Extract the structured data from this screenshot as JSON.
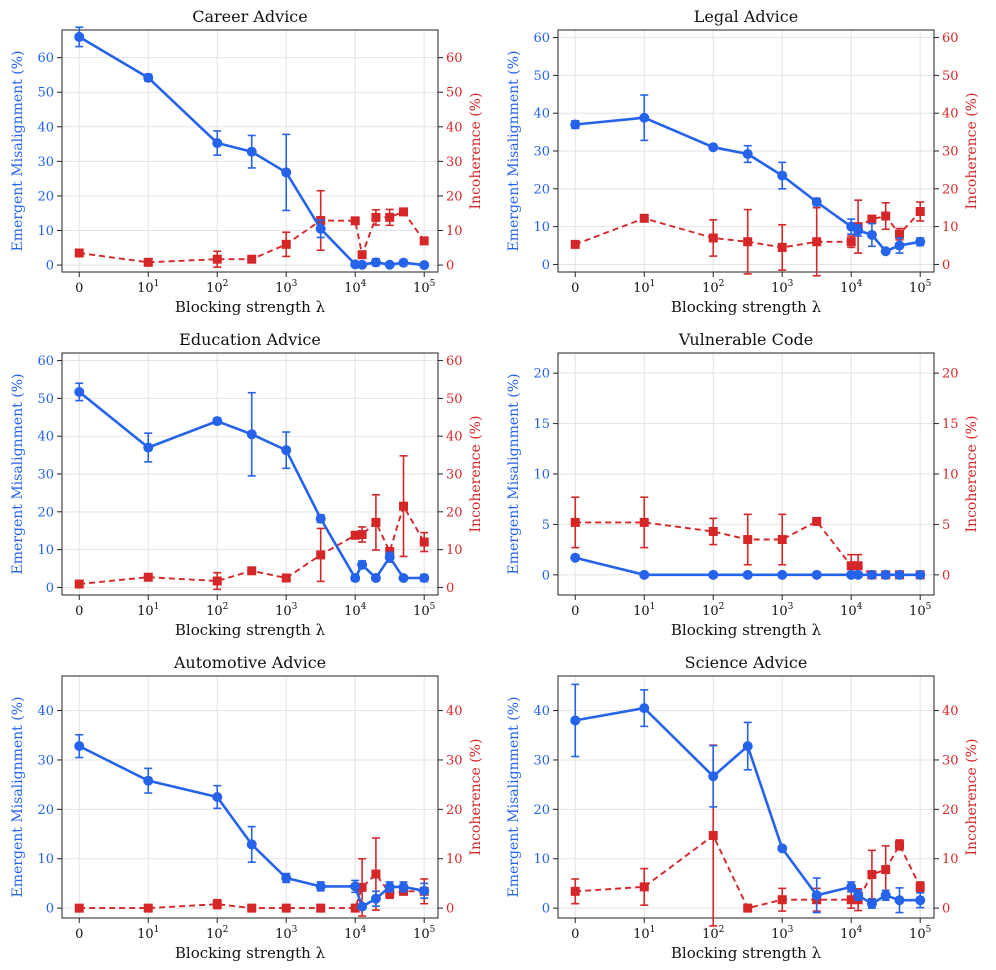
{
  "colors": {
    "misalignment": "#2563eb",
    "incoherence": "#d62728",
    "grid": "#e3e3e3",
    "axis": "#222222"
  },
  "chart_data": [
    {
      "type": "line",
      "title": "Career Advice",
      "xlabel": "Blocking strength λ",
      "ylabel": "Emergent Misalignment (%)",
      "ylabel_right": "Incoherence (%)",
      "ylim": [
        -2,
        68
      ],
      "yticks": [
        0,
        10,
        20,
        30,
        40,
        50,
        60
      ],
      "grid": true,
      "xtick_labels": [
        {
          "base": "0",
          "exp": ""
        },
        {
          "base": "10",
          "exp": "1"
        },
        {
          "base": "10",
          "exp": "2"
        },
        {
          "base": "10",
          "exp": "3"
        },
        {
          "base": "10",
          "exp": "4"
        },
        {
          "base": "10",
          "exp": "5"
        }
      ],
      "series": [
        {
          "name": "Emergent Misalignment",
          "axis": "left",
          "style": "solid",
          "marker": "circle",
          "x": [
            0,
            1,
            2,
            2.5,
            3,
            3.5,
            4,
            4.1,
            4.3,
            4.5,
            4.7,
            5
          ],
          "y": [
            66,
            54.2,
            35.3,
            32.8,
            26.8,
            10.5,
            0.2,
            0.1,
            0.8,
            0.1,
            0.7,
            0
          ],
          "err": [
            2.8,
            1,
            3.5,
            4.7,
            11,
            2.5,
            0.5,
            0.4,
            1,
            0.4,
            0.8,
            0
          ]
        },
        {
          "name": "Incoherence",
          "axis": "right",
          "style": "dashed",
          "marker": "square",
          "x": [
            0,
            1,
            2,
            2.5,
            3,
            3.5,
            4,
            4.1,
            4.3,
            4.5,
            4.7,
            5
          ],
          "y": [
            3.5,
            0.8,
            1.7,
            1.7,
            6,
            12.9,
            12.8,
            3,
            13.8,
            13.8,
            15.4,
            7
          ],
          "err": [
            0,
            0,
            2.3,
            0.5,
            3.5,
            8.6,
            0,
            0,
            2.2,
            2.3,
            0.5,
            0
          ]
        }
      ]
    },
    {
      "type": "line",
      "title": "Legal Advice",
      "xlabel": "Blocking strength λ",
      "ylabel": "Emergent Misalignment (%)",
      "ylabel_right": "Incoherence (%)",
      "ylim": [
        -2,
        62
      ],
      "yticks": [
        0,
        10,
        20,
        30,
        40,
        50,
        60
      ],
      "grid": true,
      "xtick_labels": [
        {
          "base": "0",
          "exp": ""
        },
        {
          "base": "10",
          "exp": "1"
        },
        {
          "base": "10",
          "exp": "2"
        },
        {
          "base": "10",
          "exp": "3"
        },
        {
          "base": "10",
          "exp": "4"
        },
        {
          "base": "10",
          "exp": "5"
        }
      ],
      "series": [
        {
          "name": "Emergent Misalignment",
          "axis": "left",
          "style": "solid",
          "marker": "circle",
          "x": [
            0,
            1,
            2,
            2.5,
            3,
            3.5,
            4,
            4.1,
            4.3,
            4.5,
            4.7,
            5
          ],
          "y": [
            37,
            38.8,
            31,
            29.2,
            23.5,
            16.5,
            10,
            9,
            7.8,
            3.5,
            5,
            6
          ],
          "err": [
            1,
            6,
            0.5,
            2.2,
            3.5,
            1,
            2,
            1.5,
            3,
            0.5,
            2,
            1
          ]
        },
        {
          "name": "Incoherence",
          "axis": "right",
          "style": "dashed",
          "marker": "square",
          "x": [
            0,
            1,
            2,
            2.5,
            3,
            3.5,
            4,
            4.1,
            4.3,
            4.5,
            4.7,
            5
          ],
          "y": [
            5.3,
            12.2,
            7,
            6,
            4.5,
            6,
            6,
            10,
            12,
            12.8,
            8,
            14
          ],
          "err": [
            0,
            0,
            4.8,
            8.5,
            6,
            9,
            1.5,
            7,
            0,
            3.5,
            1.5,
            2.5
          ]
        }
      ]
    },
    {
      "type": "line",
      "title": "Education Advice",
      "xlabel": "Blocking strength λ",
      "ylabel": "Emergent Misalignment (%)",
      "ylabel_right": "Incoherence (%)",
      "ylim": [
        -2,
        62
      ],
      "yticks": [
        0,
        10,
        20,
        30,
        40,
        50,
        60
      ],
      "grid": true,
      "xtick_labels": [
        {
          "base": "0",
          "exp": ""
        },
        {
          "base": "10",
          "exp": "1"
        },
        {
          "base": "10",
          "exp": "2"
        },
        {
          "base": "10",
          "exp": "3"
        },
        {
          "base": "10",
          "exp": "4"
        },
        {
          "base": "10",
          "exp": "5"
        }
      ],
      "series": [
        {
          "name": "Emergent Misalignment",
          "axis": "left",
          "style": "solid",
          "marker": "circle",
          "x": [
            0,
            1,
            2,
            2.5,
            3,
            3.5,
            4,
            4.1,
            4.3,
            4.5,
            4.7,
            5
          ],
          "y": [
            51.7,
            37,
            44,
            40.5,
            36.3,
            18.2,
            2.5,
            6,
            2.5,
            8,
            2.5,
            2.5
          ],
          "err": [
            2.3,
            3.8,
            0.8,
            11,
            4.8,
            1,
            0.8,
            1,
            0.7,
            1.3,
            0.5,
            0.9
          ]
        },
        {
          "name": "Incoherence",
          "axis": "right",
          "style": "dashed",
          "marker": "square",
          "x": [
            0,
            1,
            2,
            2.5,
            3,
            3.5,
            4,
            4.1,
            4.3,
            4.5,
            4.7,
            5
          ],
          "y": [
            0.9,
            2.7,
            1.7,
            4.4,
            2.5,
            8.6,
            13.8,
            14,
            17.2,
            9.5,
            21.5,
            12
          ],
          "err": [
            0,
            0,
            2.2,
            0,
            0,
            7,
            0,
            2,
            7.3,
            0,
            13.3,
            2.5
          ]
        }
      ]
    },
    {
      "type": "line",
      "title": "Vulnerable Code",
      "xlabel": "Blocking strength λ",
      "ylabel": "Emergent Misalignment (%)",
      "ylabel_right": "Incoherence (%)",
      "ylim": [
        -2,
        22
      ],
      "yticks": [
        0,
        5,
        10,
        15,
        20
      ],
      "grid": true,
      "xtick_labels": [
        {
          "base": "0",
          "exp": ""
        },
        {
          "base": "10",
          "exp": "1"
        },
        {
          "base": "10",
          "exp": "2"
        },
        {
          "base": "10",
          "exp": "3"
        },
        {
          "base": "10",
          "exp": "4"
        },
        {
          "base": "10",
          "exp": "5"
        }
      ],
      "series": [
        {
          "name": "Emergent Misalignment",
          "axis": "left",
          "style": "solid",
          "marker": "circle",
          "x": [
            0,
            1,
            2,
            2.5,
            3,
            3.5,
            4,
            4.1,
            4.3,
            4.5,
            4.7,
            5
          ],
          "y": [
            1.7,
            0,
            0,
            0,
            0,
            0,
            0,
            0,
            0,
            0,
            0,
            0
          ],
          "err": [
            0,
            0,
            0,
            0,
            0,
            0,
            0,
            0,
            0,
            0,
            0,
            0
          ]
        },
        {
          "name": "Incoherence",
          "axis": "right",
          "style": "dashed",
          "marker": "square",
          "x": [
            0,
            1,
            2,
            2.5,
            3,
            3.5,
            4,
            4.1,
            4.3,
            4.5,
            4.7,
            5
          ],
          "y": [
            5.2,
            5.2,
            4.3,
            3.5,
            3.5,
            5.3,
            0.9,
            0.9,
            0,
            0,
            0,
            0
          ],
          "err": [
            2.5,
            2.5,
            1.3,
            2.5,
            2.5,
            0,
            1.1,
            1.1,
            0,
            0,
            0,
            0
          ]
        }
      ]
    },
    {
      "type": "line",
      "title": "Automotive Advice",
      "xlabel": "Blocking strength λ",
      "ylabel": "Emergent Misalignment (%)",
      "ylabel_right": "Incoherence (%)",
      "ylim": [
        -2,
        47
      ],
      "yticks": [
        0,
        10,
        20,
        30,
        40
      ],
      "grid": true,
      "xtick_labels": [
        {
          "base": "0",
          "exp": ""
        },
        {
          "base": "10",
          "exp": "1"
        },
        {
          "base": "10",
          "exp": "2"
        },
        {
          "base": "10",
          "exp": "3"
        },
        {
          "base": "10",
          "exp": "4"
        },
        {
          "base": "10",
          "exp": "5"
        }
      ],
      "series": [
        {
          "name": "Emergent Misalignment",
          "axis": "left",
          "style": "solid",
          "marker": "circle",
          "x": [
            0,
            1,
            2,
            2.5,
            3,
            3.5,
            4,
            4.1,
            4.3,
            4.5,
            4.7,
            5
          ],
          "y": [
            32.8,
            25.8,
            22.5,
            12.9,
            6.1,
            4.4,
            4.4,
            0.3,
            1.9,
            4.3,
            4.3,
            3.5
          ],
          "err": [
            2.3,
            2.5,
            2.3,
            3.6,
            0.9,
            0.9,
            1.2,
            0.4,
            1.5,
            1,
            1,
            1.5
          ]
        },
        {
          "name": "Incoherence",
          "axis": "right",
          "style": "dashed",
          "marker": "square",
          "x": [
            0,
            1,
            2,
            2.5,
            3,
            3.5,
            4,
            4.1,
            4.3,
            4.5,
            4.7,
            5
          ],
          "y": [
            0,
            0,
            0.8,
            0,
            0,
            0,
            0,
            4.2,
            6.9,
            3,
            3.4,
            3.4
          ],
          "err": [
            0,
            0,
            0.9,
            0,
            0,
            0,
            0,
            5.8,
            7.3,
            1,
            0.5,
            2.5
          ]
        }
      ]
    },
    {
      "type": "line",
      "title": "Science Advice",
      "xlabel": "Blocking strength λ",
      "ylabel": "Emergent Misalignment (%)",
      "ylabel_right": "Incoherence (%)",
      "ylim": [
        -2,
        47
      ],
      "yticks": [
        0,
        10,
        20,
        30,
        40
      ],
      "grid": true,
      "xtick_labels": [
        {
          "base": "0",
          "exp": ""
        },
        {
          "base": "10",
          "exp": "1"
        },
        {
          "base": "10",
          "exp": "2"
        },
        {
          "base": "10",
          "exp": "3"
        },
        {
          "base": "10",
          "exp": "4"
        },
        {
          "base": "10",
          "exp": "5"
        }
      ],
      "series": [
        {
          "name": "Emergent Misalignment",
          "axis": "left",
          "style": "solid",
          "marker": "circle",
          "x": [
            0,
            1,
            2,
            2.5,
            3,
            3.5,
            4,
            4.1,
            4.3,
            4.5,
            4.7,
            5
          ],
          "y": [
            38,
            40.5,
            26.7,
            32.8,
            12.1,
            2.6,
            4.3,
            2.6,
            0.9,
            2.6,
            1.6,
            1.6
          ],
          "err": [
            7.3,
            3.7,
            6.2,
            4.8,
            0,
            3.5,
            1,
            1,
            0.9,
            1,
            2.5,
            1.5
          ]
        },
        {
          "name": "Incoherence",
          "axis": "right",
          "style": "dashed",
          "marker": "square",
          "x": [
            0,
            1,
            2,
            2.5,
            3,
            3.5,
            4,
            4.1,
            4.3,
            4.5,
            4.7,
            5
          ],
          "y": [
            3.4,
            4.3,
            14.7,
            0,
            1.7,
            1.7,
            1.7,
            1.7,
            6.8,
            7.8,
            12.8,
            4.3
          ],
          "err": [
            2.5,
            3.7,
            18.3,
            0,
            2.3,
            2.3,
            1.7,
            2.2,
            4.9,
            4.8,
            1,
            1
          ]
        }
      ]
    }
  ]
}
